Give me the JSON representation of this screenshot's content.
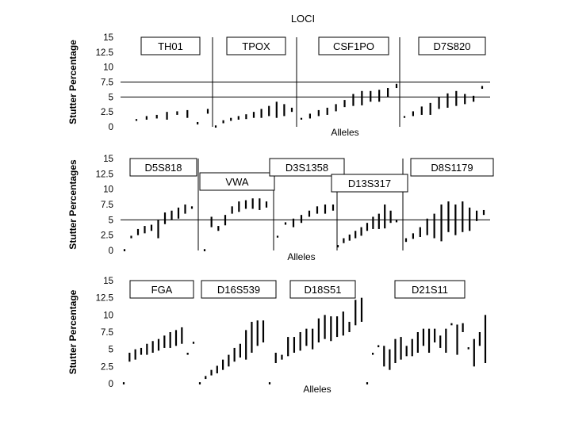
{
  "title": "LOCI",
  "chart_data": [
    {
      "type": "range",
      "ylabel": "Stutter Percentage",
      "xlabel": "Alleles",
      "ylim": [
        0,
        15
      ],
      "yticks": [
        "0",
        "2.5",
        "5",
        "7.5",
        "10",
        "12.5",
        "15"
      ],
      "reference_lines": [
        5,
        7.5
      ],
      "loci": [
        {
          "name": "TH01",
          "ranges": [
            [
              1,
              1.3
            ],
            [
              1.2,
              1.8
            ],
            [
              1.4,
              2
            ],
            [
              1.2,
              2.5
            ],
            [
              2,
              2.6
            ],
            [
              1.5,
              2.8
            ],
            [
              0.4,
              0.8
            ],
            [
              2.2,
              3
            ]
          ]
        },
        {
          "name": "TPOX",
          "ranges": [
            [
              0,
              0.1
            ],
            [
              0.6,
              1.1
            ],
            [
              1,
              1.5
            ],
            [
              1.2,
              1.8
            ],
            [
              1.3,
              2.1
            ],
            [
              1.5,
              2.5
            ],
            [
              1.5,
              3
            ],
            [
              1.8,
              3.5
            ],
            [
              1.5,
              4.2
            ],
            [
              1.8,
              3.8
            ],
            [
              2.5,
              3.2
            ]
          ]
        },
        {
          "name": "CSF1PO",
          "ranges": [
            [
              1.2,
              1.5
            ],
            [
              1.4,
              2.2
            ],
            [
              1.8,
              2.8
            ],
            [
              2,
              3.2
            ],
            [
              2.6,
              3.8
            ],
            [
              3.3,
              4.5
            ],
            [
              3.5,
              5.5
            ],
            [
              3.6,
              6
            ],
            [
              4.2,
              6
            ],
            [
              4.2,
              6.2
            ],
            [
              5,
              6.5
            ],
            [
              6.5,
              7.2
            ]
          ]
        },
        {
          "name": "D7S820",
          "ranges": [
            [
              1.5,
              1.8
            ],
            [
              1.8,
              2.6
            ],
            [
              2,
              3.4
            ],
            [
              2,
              4
            ],
            [
              3,
              5
            ],
            [
              3.2,
              5.6
            ],
            [
              3.5,
              6
            ],
            [
              3.8,
              5.5
            ],
            [
              4.2,
              5.2
            ],
            [
              6.5,
              6.7
            ]
          ]
        }
      ]
    },
    {
      "type": "range",
      "ylabel": "Stutter Percentages",
      "xlabel": "Alleles",
      "ylim": [
        0,
        15
      ],
      "yticks": [
        "0",
        "2.5",
        "5",
        "7.5",
        "10",
        "12.5",
        "15"
      ],
      "reference_lines": [
        5
      ],
      "loci": [
        {
          "name": "D5S818",
          "ranges": [
            [
              0,
              0.1
            ],
            [
              2,
              2.4
            ],
            [
              2.5,
              3.5
            ],
            [
              2.8,
              4
            ],
            [
              3.2,
              4.2
            ],
            [
              2,
              5
            ],
            [
              4.3,
              6.2
            ],
            [
              5,
              6.5
            ],
            [
              5.2,
              7
            ],
            [
              6,
              7.5
            ],
            [
              6.8,
              7.2
            ]
          ]
        },
        {
          "name": "VWA",
          "ranges": [
            [
              0,
              0.1
            ],
            [
              3.8,
              5.5
            ],
            [
              3.2,
              4
            ],
            [
              4.1,
              5.8
            ],
            [
              6,
              7.2
            ],
            [
              6.3,
              8
            ],
            [
              6.8,
              8.2
            ],
            [
              6.8,
              8.5
            ],
            [
              6.6,
              8.5
            ],
            [
              7,
              8
            ]
          ]
        },
        {
          "name": "D3S1358",
          "ranges": [
            [
              2.1,
              2.4
            ],
            [
              4.2,
              4.6
            ],
            [
              3.8,
              5.2
            ],
            [
              4.5,
              5.8
            ],
            [
              5.5,
              6.5
            ],
            [
              6,
              7.2
            ],
            [
              6,
              7.5
            ],
            [
              6.5,
              7.5
            ]
          ]
        },
        {
          "name": "D13S317",
          "ranges": [
            [
              0.5,
              0.9
            ],
            [
              1.2,
              2
            ],
            [
              1.6,
              2.6
            ],
            [
              2,
              3.2
            ],
            [
              2.4,
              3.8
            ],
            [
              3.2,
              4.5
            ],
            [
              3.5,
              5.5
            ],
            [
              3.5,
              6
            ],
            [
              3.6,
              7.5
            ],
            [
              4.5,
              6.5
            ],
            [
              4.6,
              5
            ]
          ]
        },
        {
          "name": "D8S1179",
          "ranges": [
            [
              1.4,
              2
            ],
            [
              1.9,
              2.8
            ],
            [
              2.2,
              3.8
            ],
            [
              2.5,
              5.2
            ],
            [
              2,
              6
            ],
            [
              1.5,
              7.5
            ],
            [
              3,
              8
            ],
            [
              2.5,
              7.5
            ],
            [
              3,
              8
            ],
            [
              3.2,
              7
            ],
            [
              4.8,
              6.5
            ],
            [
              5.8,
              6.6
            ]
          ]
        }
      ]
    },
    {
      "type": "range",
      "ylabel": "Stutter Percentage",
      "xlabel": "Alleles",
      "ylim": [
        0,
        15
      ],
      "yticks": [
        "0",
        "2.5",
        "5",
        "7.5",
        "10",
        "12.5",
        "15"
      ],
      "reference_lines": [],
      "loci": [
        {
          "name": "FGA",
          "ranges": [
            [
              0,
              0.1
            ],
            [
              3.2,
              4.5
            ],
            [
              3.5,
              5
            ],
            [
              4.2,
              5.2
            ],
            [
              4.2,
              5.8
            ],
            [
              4.5,
              6.2
            ],
            [
              4.8,
              6.5
            ],
            [
              5.2,
              7
            ],
            [
              5.2,
              7.5
            ],
            [
              5.5,
              7.8
            ],
            [
              5.8,
              8.2
            ],
            [
              4.2,
              4.5
            ],
            [
              5.8,
              6.1
            ]
          ]
        },
        {
          "name": "D16S539",
          "ranges": [
            [
              0,
              0.1
            ],
            [
              0.8,
              1
            ],
            [
              1.2,
              2
            ],
            [
              1.5,
              2.6
            ],
            [
              2,
              3.5
            ],
            [
              2.5,
              4.2
            ],
            [
              3.2,
              5.2
            ],
            [
              3.8,
              5.8
            ],
            [
              3.5,
              7.8
            ],
            [
              4.5,
              9
            ],
            [
              5.5,
              9.2
            ],
            [
              6,
              9.2
            ]
          ]
        },
        {
          "name": "D18S51",
          "ranges": [
            [
              0,
              0.1
            ],
            [
              3,
              4.5
            ],
            [
              3.5,
              4.2
            ],
            [
              4,
              6.8
            ],
            [
              4.5,
              6.8
            ],
            [
              4.8,
              7.5
            ],
            [
              5.5,
              8
            ],
            [
              5,
              8
            ],
            [
              6,
              9.5
            ],
            [
              6.5,
              10
            ],
            [
              6.2,
              9.8
            ],
            [
              6.8,
              9.8
            ],
            [
              7,
              10.5
            ],
            [
              7.5,
              9
            ],
            [
              8.5,
              12.2
            ],
            [
              9,
              12.5
            ]
          ]
        },
        {
          "name": "D21S11",
          "ranges": [
            [
              0,
              0.1
            ],
            [
              4.2,
              4.5
            ],
            [
              5.3,
              5.6
            ],
            [
              2.5,
              5.5
            ],
            [
              2,
              5
            ],
            [
              3,
              6.5
            ],
            [
              3.5,
              6.8
            ],
            [
              4,
              5.5
            ],
            [
              4,
              6.5
            ],
            [
              4.5,
              7.5
            ],
            [
              5.5,
              8
            ],
            [
              4.5,
              8
            ],
            [
              6,
              8
            ],
            [
              5.2,
              7
            ],
            [
              4.5,
              8
            ],
            [
              8.5,
              8.8
            ],
            [
              4.2,
              8.6
            ],
            [
              7.5,
              8.8
            ],
            [
              5,
              5.3
            ],
            [
              2.5,
              6.5
            ],
            [
              5.5,
              7.5
            ],
            [
              3,
              10
            ]
          ]
        }
      ]
    }
  ]
}
